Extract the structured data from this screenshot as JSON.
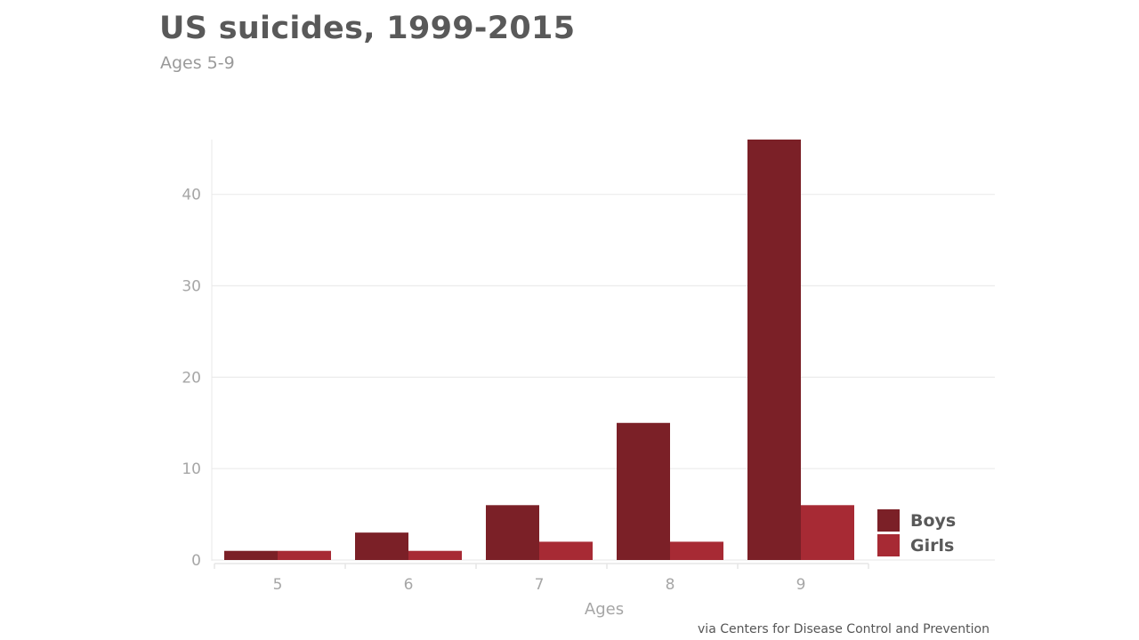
{
  "chart_data": {
    "type": "bar",
    "title": "US suicides, 1999-2015",
    "subtitle": "Ages 5-9",
    "xlabel": "Ages",
    "ylabel": "",
    "categories": [
      "5",
      "6",
      "7",
      "8",
      "9"
    ],
    "series": [
      {
        "name": "Boys",
        "values": [
          1,
          3,
          6,
          15,
          46
        ],
        "color": "#7b2027"
      },
      {
        "name": "Girls",
        "values": [
          1,
          1,
          2,
          2,
          6
        ],
        "color": "#a72a34"
      }
    ],
    "ylim": [
      0,
      46
    ],
    "yticks": [
      0,
      10,
      20,
      30,
      40
    ],
    "grid": true,
    "legend_position": "bottom-right",
    "source": "via Centers for Disease Control and Prevention"
  }
}
